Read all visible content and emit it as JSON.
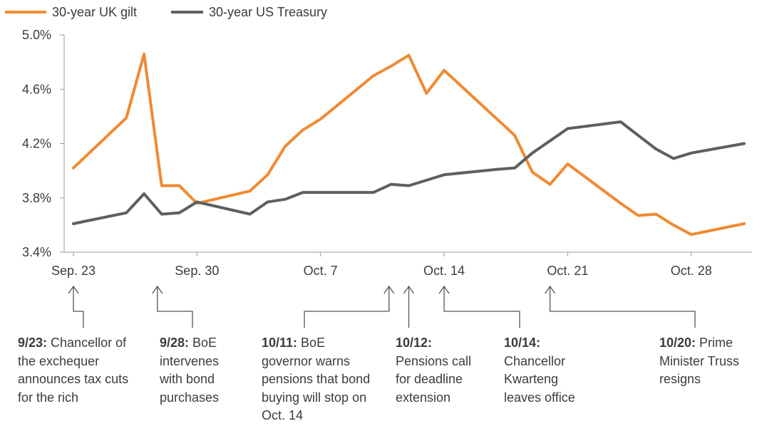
{
  "chart_data": {
    "type": "line",
    "legend": {
      "placement": "top-left"
    },
    "y_ticks": [
      "5.0%",
      "4.6%",
      "4.2%",
      "3.8%",
      "3.4%"
    ],
    "ylim": [
      3.4,
      5.0
    ],
    "x_ticks": [
      "Sep. 23",
      "Sep. 30",
      "Oct. 7",
      "Oct. 14",
      "Oct. 21",
      "Oct. 28"
    ],
    "x_tick_dates": [
      "2022-09-23",
      "2022-09-30",
      "2022-10-07",
      "2022-10-14",
      "2022-10-21",
      "2022-10-28"
    ],
    "xlim": [
      "2022-09-23",
      "2022-10-31"
    ],
    "grid": false,
    "series": [
      {
        "name": "30-year UK gilt",
        "color": "#f08a33",
        "dates": [
          "2022-09-23",
          "2022-09-26",
          "2022-09-27",
          "2022-09-28",
          "2022-09-29",
          "2022-09-30",
          "2022-10-03",
          "2022-10-04",
          "2022-10-05",
          "2022-10-06",
          "2022-10-07",
          "2022-10-10",
          "2022-10-11",
          "2022-10-12",
          "2022-10-13",
          "2022-10-14",
          "2022-10-17",
          "2022-10-18",
          "2022-10-19",
          "2022-10-20",
          "2022-10-21",
          "2022-10-24",
          "2022-10-25",
          "2022-10-26",
          "2022-10-27",
          "2022-10-28",
          "2022-10-31"
        ],
        "values": [
          4.02,
          4.39,
          4.86,
          3.89,
          3.89,
          3.76,
          3.85,
          3.97,
          4.18,
          4.3,
          4.38,
          4.7,
          4.77,
          4.85,
          4.57,
          4.74,
          4.38,
          4.26,
          3.99,
          3.9,
          4.05,
          3.76,
          3.67,
          3.68,
          3.6,
          3.53,
          3.61
        ]
      },
      {
        "name": "30-year US Treasury",
        "color": "#5c6060",
        "dates": [
          "2022-09-23",
          "2022-09-26",
          "2022-09-27",
          "2022-09-28",
          "2022-09-29",
          "2022-09-30",
          "2022-10-03",
          "2022-10-04",
          "2022-10-05",
          "2022-10-06",
          "2022-10-07",
          "2022-10-10",
          "2022-10-11",
          "2022-10-12",
          "2022-10-13",
          "2022-10-14",
          "2022-10-17",
          "2022-10-18",
          "2022-10-19",
          "2022-10-20",
          "2022-10-21",
          "2022-10-24",
          "2022-10-25",
          "2022-10-26",
          "2022-10-27",
          "2022-10-28",
          "2022-10-31"
        ],
        "values": [
          3.61,
          3.69,
          3.83,
          3.68,
          3.69,
          3.77,
          3.68,
          3.77,
          3.79,
          3.84,
          3.84,
          3.84,
          3.9,
          3.89,
          3.93,
          3.97,
          4.01,
          4.02,
          4.13,
          4.22,
          4.31,
          4.36,
          4.26,
          4.16,
          4.09,
          4.13,
          4.2
        ]
      }
    ],
    "annotations": [
      {
        "id": "a1",
        "date": "2022-09-23",
        "bold": "9/23:",
        "text": " Chancellor of the exchequer announces tax cuts for the rich"
      },
      {
        "id": "a2",
        "date": "2022-09-28",
        "bold": "9/28:",
        "text": " BoE intervenes with bond purchases"
      },
      {
        "id": "a3",
        "date": "2022-10-11",
        "bold": "10/11:",
        "text": " BoE governor warns pensions that bond buying will stop on Oct. 14"
      },
      {
        "id": "a4",
        "date": "2022-10-12",
        "bold": "10/12:",
        "text": " Pensions call for deadline extension"
      },
      {
        "id": "a5",
        "date": "2022-10-14",
        "bold": "10/14:",
        "text": " Chancellor Kwarteng leaves office"
      },
      {
        "id": "a6",
        "date": "2022-10-20",
        "bold": "10/20:",
        "text": " Prime Minister Truss resigns"
      }
    ]
  }
}
